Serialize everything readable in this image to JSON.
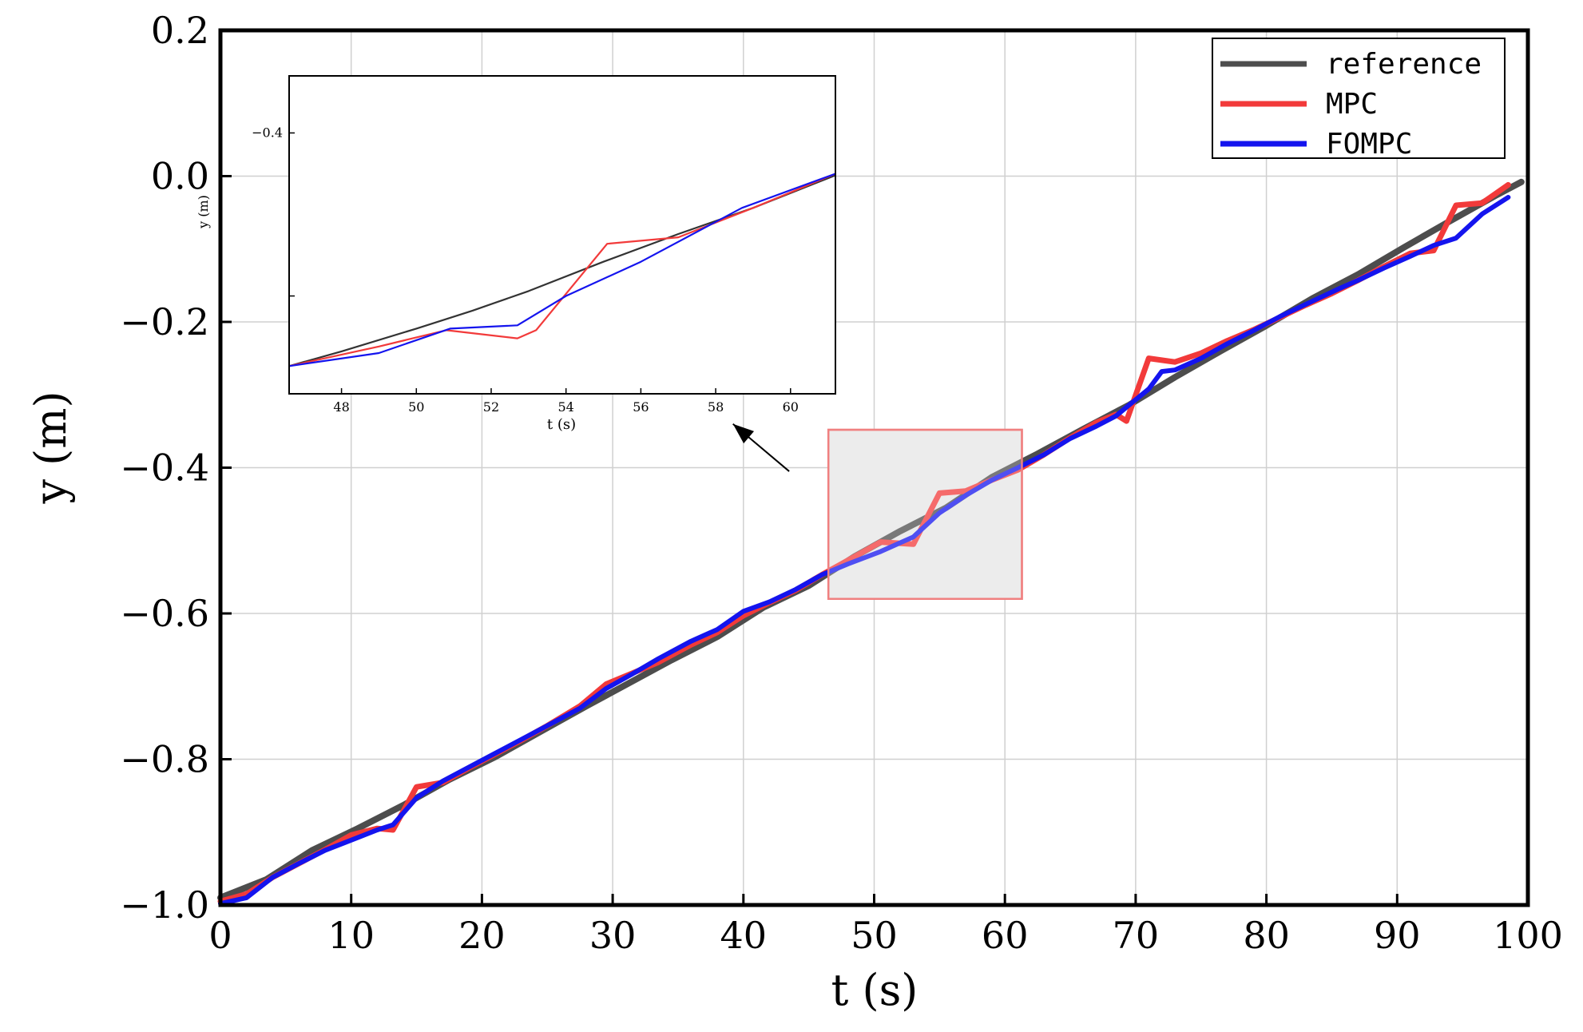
{
  "chart_data": [
    {
      "type": "line",
      "title": "",
      "xlabel": "t (s)",
      "ylabel": "y (m)",
      "xlim": [
        0,
        100
      ],
      "ylim": [
        -1.0,
        0.2
      ],
      "xticks": [
        0,
        10,
        20,
        30,
        40,
        50,
        60,
        70,
        80,
        90,
        100
      ],
      "xtick_labels": [
        "0",
        "10",
        "20",
        "30",
        "40",
        "50",
        "60",
        "70",
        "80",
        "90",
        "100"
      ],
      "yticks": [
        -1.0,
        -0.8,
        -0.6,
        -0.4,
        -0.2,
        0.0,
        0.2
      ],
      "ytick_labels": [
        "−1.0",
        "−0.8",
        "−0.6",
        "−0.4",
        "−0.2",
        "0.0",
        "0.2"
      ],
      "grid": true,
      "legend_position": "top-right",
      "series": [
        {
          "name": "reference",
          "color": "#4d4d4d",
          "x": [
            0,
            3.5,
            7,
            10.5,
            14,
            17.5,
            21,
            24.5,
            28,
            31,
            34.5,
            38,
            41.5,
            45,
            48.5,
            52,
            55.5,
            59,
            62.5,
            66,
            69.5,
            73,
            76.5,
            80,
            83.5,
            87,
            90.5,
            94,
            97.5,
            99.5
          ],
          "y": [
            -0.99,
            -0.965,
            -0.925,
            -0.895,
            -0.863,
            -0.828,
            -0.797,
            -0.762,
            -0.727,
            -0.698,
            -0.664,
            -0.632,
            -0.592,
            -0.562,
            -0.522,
            -0.487,
            -0.455,
            -0.413,
            -0.381,
            -0.347,
            -0.314,
            -0.276,
            -0.24,
            -0.205,
            -0.168,
            -0.135,
            -0.098,
            -0.062,
            -0.027,
            -0.008
          ]
        },
        {
          "name": "MPC",
          "color": "#f23a3a",
          "x": [
            0,
            2,
            4,
            6,
            8,
            10,
            12,
            13.2,
            15,
            17,
            19,
            21,
            23,
            25,
            27.5,
            29.5,
            31.5,
            33.5,
            36,
            38,
            40,
            42,
            44,
            46,
            48,
            50.5,
            53,
            55,
            57,
            59,
            61,
            63,
            65,
            67,
            68.5,
            69.3,
            71,
            73,
            75,
            77,
            79,
            81,
            83,
            85,
            87,
            89,
            91,
            92.8,
            94.5,
            96.5,
            98.5
          ],
          "y": [
            -0.995,
            -0.985,
            -0.962,
            -0.943,
            -0.924,
            -0.904,
            -0.895,
            -0.897,
            -0.838,
            -0.832,
            -0.812,
            -0.793,
            -0.774,
            -0.754,
            -0.727,
            -0.697,
            -0.682,
            -0.667,
            -0.643,
            -0.626,
            -0.603,
            -0.585,
            -0.568,
            -0.547,
            -0.527,
            -0.502,
            -0.505,
            -0.435,
            -0.432,
            -0.417,
            -0.403,
            -0.382,
            -0.359,
            -0.338,
            -0.327,
            -0.336,
            -0.25,
            -0.255,
            -0.243,
            -0.226,
            -0.211,
            -0.194,
            -0.177,
            -0.161,
            -0.143,
            -0.124,
            -0.106,
            -0.102,
            -0.04,
            -0.037,
            -0.012
          ]
        },
        {
          "name": "FOMPC",
          "color": "#1414ee",
          "x": [
            0,
            2,
            4,
            6,
            8,
            10,
            12,
            13.2,
            15,
            17,
            19,
            21,
            23,
            25,
            27.5,
            29.5,
            31.5,
            33.5,
            36,
            38,
            40,
            42,
            44,
            46,
            48,
            50.5,
            53,
            55,
            57,
            59,
            61,
            63,
            65,
            67,
            68.5,
            69.3,
            71,
            72,
            73,
            75,
            77,
            79,
            81,
            83,
            85.5,
            87,
            89,
            91,
            92.8,
            94.5,
            96.5,
            98.5
          ],
          "y": [
            -0.998,
            -0.99,
            -0.962,
            -0.943,
            -0.925,
            -0.911,
            -0.897,
            -0.89,
            -0.853,
            -0.83,
            -0.811,
            -0.792,
            -0.773,
            -0.754,
            -0.73,
            -0.703,
            -0.683,
            -0.662,
            -0.638,
            -0.622,
            -0.597,
            -0.584,
            -0.567,
            -0.547,
            -0.532,
            -0.515,
            -0.495,
            -0.462,
            -0.438,
            -0.417,
            -0.4,
            -0.382,
            -0.36,
            -0.343,
            -0.329,
            -0.317,
            -0.292,
            -0.268,
            -0.266,
            -0.25,
            -0.23,
            -0.212,
            -0.193,
            -0.176,
            -0.155,
            -0.143,
            -0.126,
            -0.11,
            -0.095,
            -0.085,
            -0.052,
            -0.029
          ]
        }
      ],
      "highlight_region": {
        "x": [
          46.5,
          61.3
        ],
        "y": [
          -0.58,
          -0.348
        ],
        "fill": "#e6e6e6",
        "edge": "#f08080"
      },
      "annotation": {
        "type": "arrow",
        "from": [
          43.5,
          -0.405
        ],
        "to": [
          39.2,
          -0.34
        ]
      }
    },
    {
      "type": "line",
      "title": "",
      "xlabel": "t (s)",
      "ylabel": "y (m)",
      "xlim": [
        46.6,
        61.2
      ],
      "ylim": [
        -0.56,
        -0.365
      ],
      "xticks": [
        48,
        50,
        52,
        54,
        56,
        58,
        60
      ],
      "xtick_labels": [
        "48",
        "50",
        "52",
        "54",
        "56",
        "58",
        "60"
      ],
      "yticks": [
        -0.4,
        -0.5
      ],
      "ytick_labels": [
        "−0.4",
        ""
      ],
      "grid": false,
      "series": [
        {
          "name": "reference",
          "color": "#333333",
          "x": [
            46.6,
            48,
            50,
            51.5,
            53,
            55,
            57,
            59,
            61.2
          ],
          "y": [
            -0.543,
            -0.534,
            -0.52,
            -0.509,
            -0.497,
            -0.479,
            -0.462,
            -0.446,
            -0.426
          ]
        },
        {
          "name": "MPC",
          "color": "#f23a3a",
          "x": [
            46.6,
            49,
            50.8,
            52.7,
            53.2,
            55.1,
            57,
            59,
            61.2
          ],
          "y": [
            -0.543,
            -0.531,
            -0.521,
            -0.526,
            -0.521,
            -0.468,
            -0.464,
            -0.446,
            -0.425
          ]
        },
        {
          "name": "FOMPC",
          "color": "#1414ee",
          "x": [
            46.6,
            49,
            50.9,
            52.7,
            54,
            56,
            58.7,
            61.2
          ],
          "y": [
            -0.543,
            -0.535,
            -0.52,
            -0.518,
            -0.5,
            -0.479,
            -0.446,
            -0.425
          ]
        }
      ]
    }
  ]
}
